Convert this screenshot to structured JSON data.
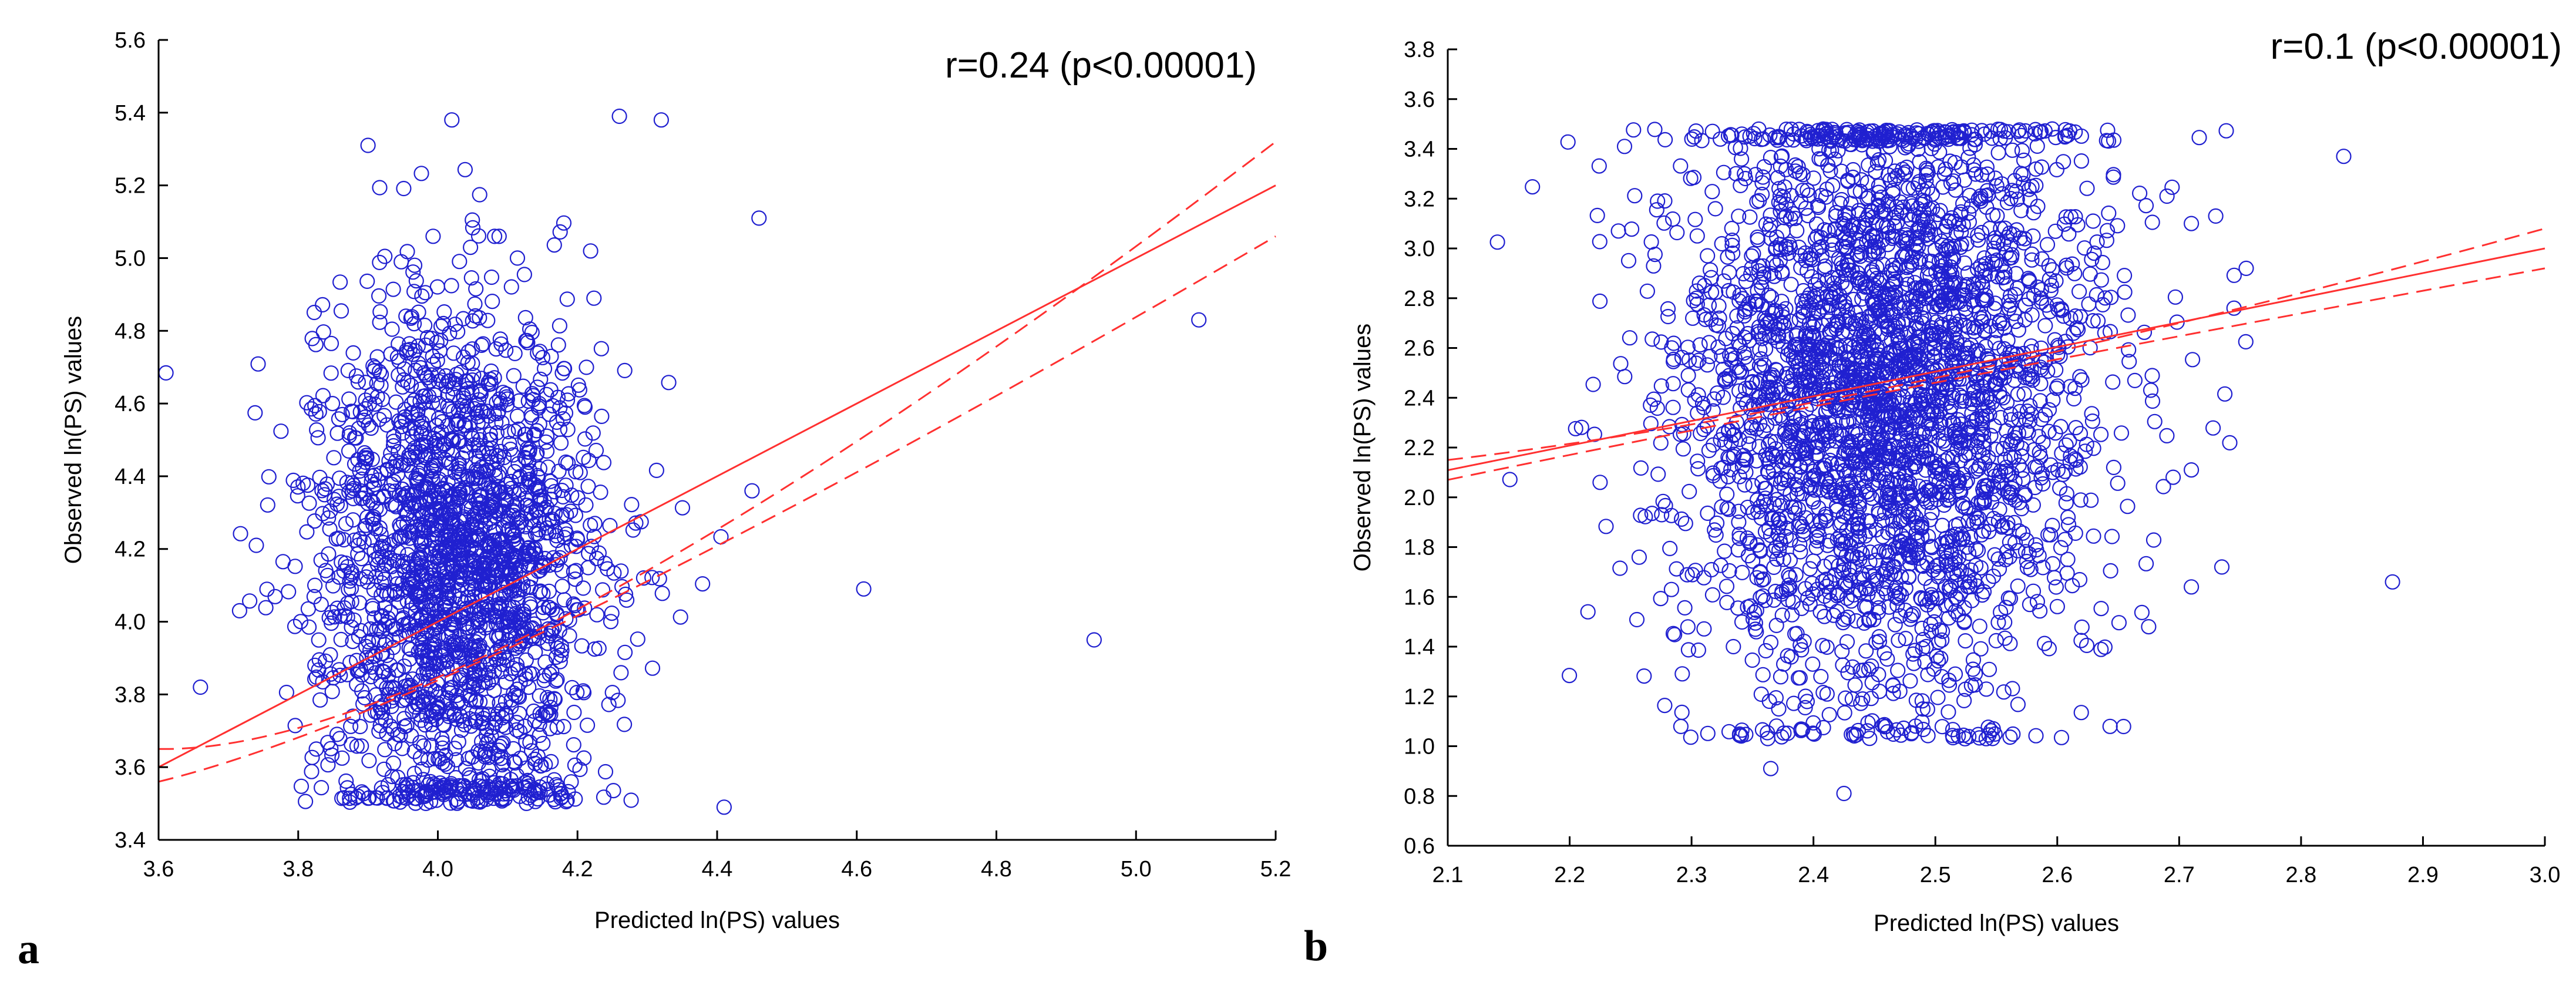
{
  "chart_data": [
    {
      "type": "scatter",
      "panel_label": "a",
      "annotation": "r=0.24 (p<0.00001)",
      "xlabel": "Predicted ln(PS) values",
      "ylabel": "Observed ln(PS) values",
      "xlim": [
        3.6,
        5.2
      ],
      "ylim": [
        3.4,
        5.6
      ],
      "xticks": [
        "3.6",
        "3.8",
        "4.0",
        "4.2",
        "4.4",
        "4.6",
        "4.8",
        "5.0",
        "5.2"
      ],
      "yticks": [
        "3.4",
        "3.6",
        "3.8",
        "4.0",
        "4.2",
        "4.4",
        "4.6",
        "4.8",
        "5.0",
        "5.2",
        "5.4",
        "5.6"
      ],
      "grid": false,
      "marker": "open circle",
      "marker_color": "#2020d0",
      "line_color": "#ff3030",
      "fit": {
        "slope": 1.0,
        "intercept": 0.0
      },
      "confidence_band": [
        {
          "x": 3.6,
          "lo": 3.56,
          "hi": 3.65
        },
        {
          "x": 4.05,
          "lo": 4.04,
          "hi": 4.06
        },
        {
          "x": 5.2,
          "lo": 5.06,
          "hi": 5.32
        }
      ],
      "cloud": {
        "n": 2200,
        "x_center": 4.03,
        "x_sd": 0.1,
        "y_min": 3.5,
        "y_max": 5.4,
        "y_center": 4.15,
        "y_sd": 0.38
      },
      "outliers": [
        {
          "x": 3.66,
          "y": 3.82
        },
        {
          "x": 3.74,
          "y": 4.21
        },
        {
          "x": 4.41,
          "y": 3.49
        },
        {
          "x": 4.45,
          "y": 4.36
        },
        {
          "x": 4.46,
          "y": 5.11
        },
        {
          "x": 4.61,
          "y": 4.09
        },
        {
          "x": 4.94,
          "y": 3.95
        },
        {
          "x": 5.09,
          "y": 4.83
        },
        {
          "x": 4.02,
          "y": 5.38
        },
        {
          "x": 4.26,
          "y": 5.39
        },
        {
          "x": 4.32,
          "y": 5.38
        },
        {
          "x": 3.9,
          "y": 5.31
        }
      ]
    },
    {
      "type": "scatter",
      "panel_label": "b",
      "annotation": "r=0.1 (p<0.00001)",
      "xlabel": "Predicted ln(PS) values",
      "ylabel": "Observed ln(PS) values",
      "xlim": [
        2.1,
        3.0
      ],
      "ylim": [
        0.6,
        3.8
      ],
      "xticks": [
        "2.1",
        "2.2",
        "2.3",
        "2.4",
        "2.5",
        "2.6",
        "2.7",
        "2.8",
        "2.9",
        "3.0"
      ],
      "yticks": [
        "0.6",
        "0.8",
        "1.0",
        "1.2",
        "1.4",
        "1.6",
        "1.8",
        "2.0",
        "2.2",
        "2.4",
        "2.6",
        "2.8",
        "3.0",
        "3.2",
        "3.4",
        "3.6",
        "3.8"
      ],
      "grid": false,
      "marker": "open circle",
      "marker_color": "#2020d0",
      "line_color": "#ff3030",
      "fit": {
        "slope": 0.99,
        "intercept": 0.03
      },
      "confidence_band": [
        {
          "x": 2.1,
          "lo": 2.07,
          "hi": 2.15
        },
        {
          "x": 2.47,
          "lo": 2.47,
          "hi": 2.49
        },
        {
          "x": 3.0,
          "lo": 2.92,
          "hi": 3.08
        }
      ],
      "cloud": {
        "n": 3200,
        "x_center": 2.46,
        "x_sd": 0.085,
        "y_min": 1.03,
        "y_max": 3.48,
        "y_center": 2.45,
        "y_sd": 0.62
      },
      "outliers": [
        {
          "x": 2.215,
          "y": 1.54
        },
        {
          "x": 2.225,
          "y": 2.06
        },
        {
          "x": 2.245,
          "y": 3.41
        },
        {
          "x": 2.24,
          "y": 3.07
        },
        {
          "x": 2.425,
          "y": 0.81
        },
        {
          "x": 2.365,
          "y": 0.91
        },
        {
          "x": 2.69,
          "y": 3.21
        },
        {
          "x": 2.71,
          "y": 3.1
        },
        {
          "x": 2.73,
          "y": 3.13
        },
        {
          "x": 2.745,
          "y": 2.76
        },
        {
          "x": 2.755,
          "y": 2.92
        },
        {
          "x": 2.835,
          "y": 3.37
        },
        {
          "x": 2.875,
          "y": 1.66
        },
        {
          "x": 2.71,
          "y": 1.64
        },
        {
          "x": 2.735,
          "y": 1.72
        },
        {
          "x": 2.71,
          "y": 2.11
        },
        {
          "x": 2.675,
          "y": 1.48
        }
      ]
    }
  ]
}
